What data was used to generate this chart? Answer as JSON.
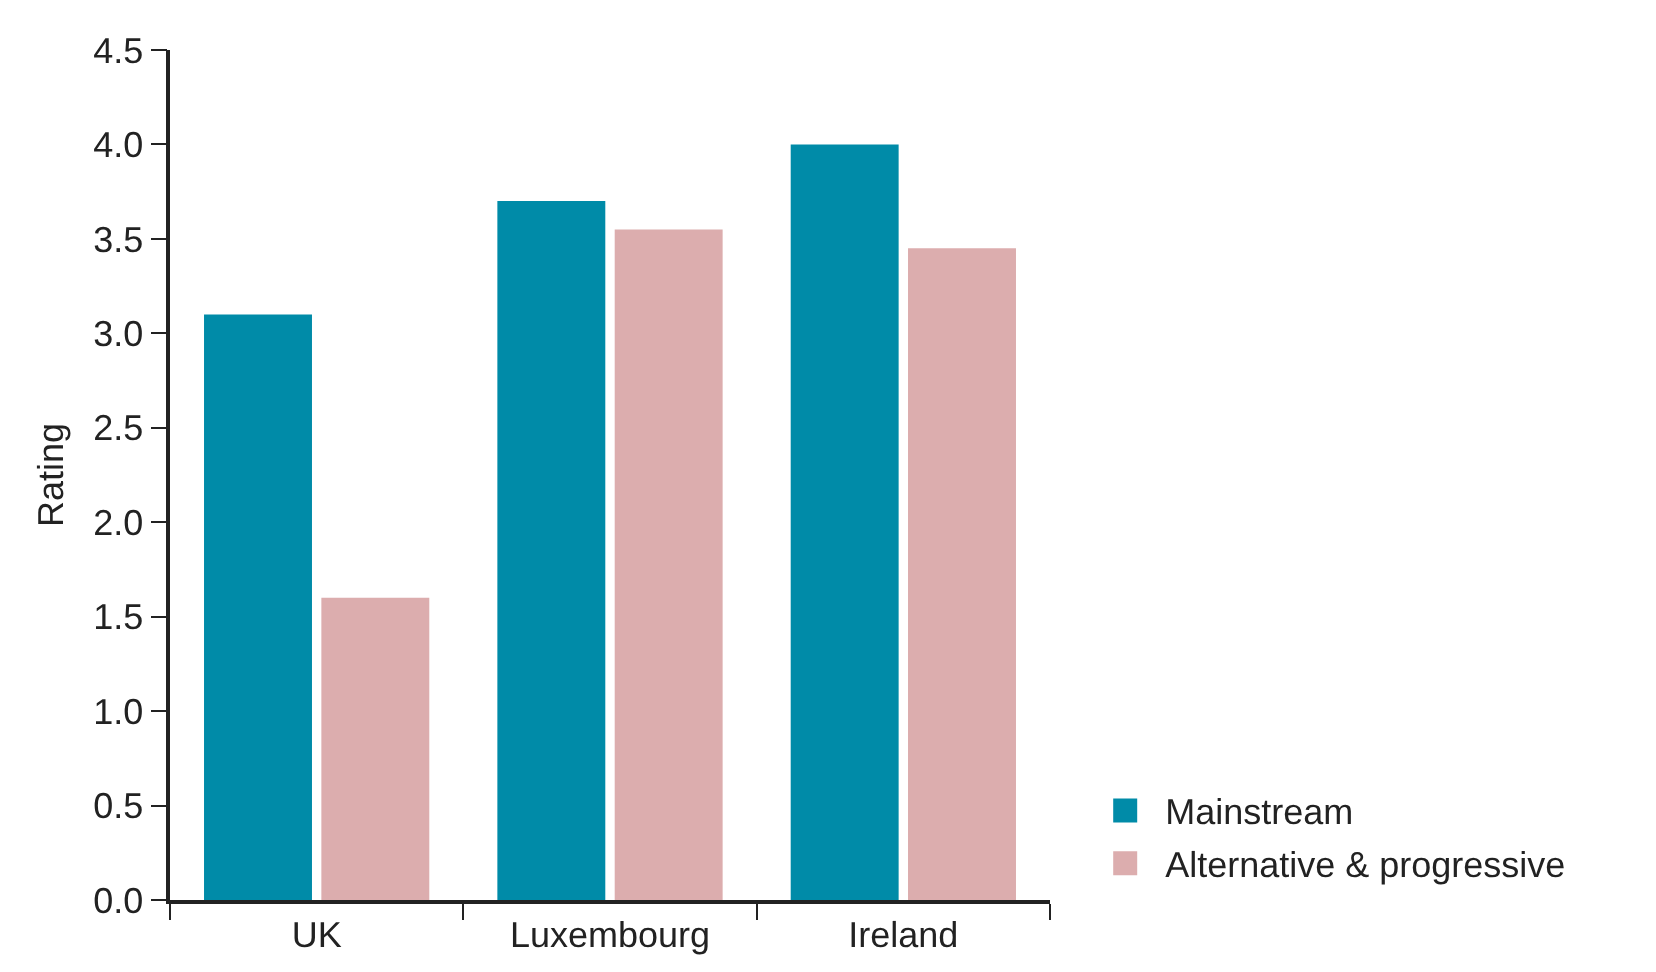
{
  "chart_data": {
    "type": "bar",
    "ylabel": "Rating",
    "categories": [
      "UK",
      "Luxembourg",
      "Ireland"
    ],
    "series": [
      {
        "name": "Mainstream",
        "color": "#008ba8",
        "values": [
          3.1,
          3.7,
          4.0
        ]
      },
      {
        "name": "Alternative & progressive",
        "color": "#dcadae",
        "values": [
          1.6,
          3.55,
          3.45
        ]
      }
    ],
    "ylim": [
      0,
      4.5
    ],
    "yticks": [
      {
        "value": 0,
        "label": "0.0"
      },
      {
        "value": 0.5,
        "label": "0.5"
      },
      {
        "value": 1,
        "label": "1.0"
      },
      {
        "value": 1.5,
        "label": "1.5"
      },
      {
        "value": 2,
        "label": "2.0"
      },
      {
        "value": 2.5,
        "label": "2.5"
      },
      {
        "value": 3,
        "label": "3.0"
      },
      {
        "value": 3.5,
        "label": "3.5"
      },
      {
        "value": 4,
        "label": "4.0"
      },
      {
        "value": 4.5,
        "label": "4.5"
      }
    ],
    "grid": false,
    "legend": "bottom right"
  }
}
